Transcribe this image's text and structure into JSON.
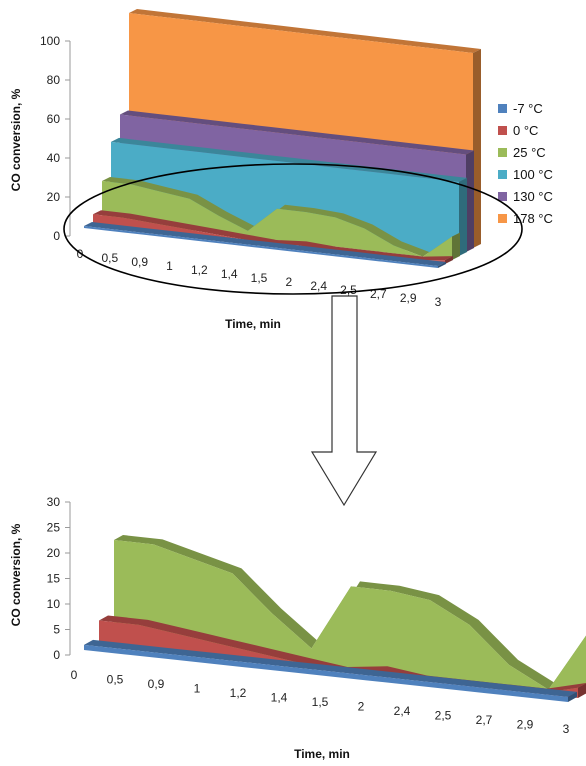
{
  "chart_data": [
    {
      "type": "area",
      "title": "",
      "xlabel": "Time, min",
      "ylabel": "CO conversion, %",
      "ylim": [
        0,
        100
      ],
      "yticks": [
        "0",
        "20",
        "40",
        "60",
        "80",
        "100"
      ],
      "categories": [
        "0",
        "0,5",
        "0,9",
        "1",
        "1,2",
        "1,4",
        "1,5",
        "2",
        "2,4",
        "2,5",
        "2,7",
        "2,9",
        "3"
      ],
      "legend_position": "right",
      "series": [
        {
          "name": "-7 °C",
          "color": "#4F81BD",
          "values": [
            1,
            1,
            1,
            1,
            1,
            1,
            1,
            1,
            1,
            1,
            1,
            1,
            1
          ]
        },
        {
          "name": "0 °C",
          "color": "#C0504D",
          "values": [
            5,
            5,
            4,
            3,
            2,
            1,
            0,
            1,
            0,
            0,
            0,
            0,
            2
          ]
        },
        {
          "name": "25 °C",
          "color": "#9BBB59",
          "values": [
            20,
            20,
            18,
            16,
            9,
            3,
            16,
            16,
            15,
            11,
            4,
            0,
            12
          ]
        },
        {
          "name": "100 °C",
          "color": "#4BACC6",
          "values": [
            38,
            38,
            38,
            38,
            38,
            38,
            38,
            38,
            38,
            38,
            38,
            38,
            38
          ]
        },
        {
          "name": "130 °C",
          "color": "#8064A2",
          "values": [
            50,
            50,
            50,
            50,
            50,
            50,
            50,
            50,
            50,
            50,
            50,
            50,
            50
          ]
        },
        {
          "name": "178 °C",
          "color": "#F79646",
          "values": [
            100,
            100,
            100,
            100,
            100,
            100,
            100,
            100,
            100,
            100,
            100,
            100,
            100
          ]
        }
      ]
    },
    {
      "type": "area",
      "title": "",
      "xlabel": "Time, min",
      "ylabel": "CO conversion, %",
      "ylim": [
        0,
        30
      ],
      "yticks": [
        "0",
        "5",
        "10",
        "15",
        "20",
        "25",
        "30"
      ],
      "categories": [
        "0",
        "0,5",
        "0,9",
        "1",
        "1,2",
        "1,4",
        "1,5",
        "2",
        "2,4",
        "2,5",
        "2,7",
        "2,9",
        "3"
      ],
      "series": [
        {
          "name": "-7 °C",
          "color": "#4F81BD",
          "values": [
            1,
            1,
            1,
            1,
            1,
            1,
            1,
            1,
            1,
            1,
            1,
            1,
            1
          ]
        },
        {
          "name": "0 °C",
          "color": "#C0504D",
          "values": [
            5,
            5,
            4,
            3,
            2,
            1,
            0,
            1,
            0,
            0,
            0,
            0,
            2
          ]
        },
        {
          "name": "25 °C",
          "color": "#9BBB59",
          "values": [
            20,
            20,
            18,
            16,
            9,
            3,
            16,
            16,
            15,
            11,
            4,
            0,
            12
          ]
        }
      ]
    }
  ]
}
